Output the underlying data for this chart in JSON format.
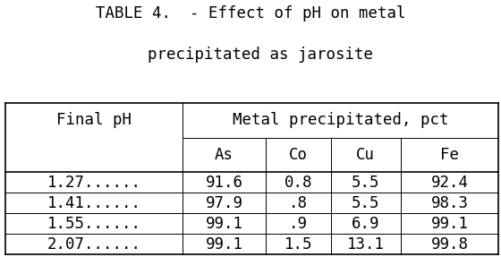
{
  "title_line1": "TABLE 4.  - Effect of pH on metal",
  "title_line2": "  precipitated as jarosite",
  "col_header1": "Final pH",
  "col_header2": "Metal precipitated, pct",
  "subheaders": [
    "As",
    "Co",
    "Cu",
    "Fe"
  ],
  "rows": [
    {
      "ph": "1.27......",
      "As": "91.6",
      "Co": "0.8",
      "Cu": "5.5",
      "Fe": "92.4"
    },
    {
      "ph": "1.41......",
      "As": "97.9",
      "Co": ".8",
      "Cu": "5.5",
      "Fe": "98.3"
    },
    {
      "ph": "1.55......",
      "As": "99.1",
      "Co": ".9",
      "Cu": "6.9",
      "Fe": "99.1"
    },
    {
      "ph": "2.07......",
      "As": "99.1",
      "Co": "1.5",
      "Cu": "13.1",
      "Fe": "99.8"
    }
  ],
  "bg_color": "#ffffff",
  "text_color": "#000000",
  "title_fontsize": 12.5,
  "table_fontsize": 12.5,
  "lw_thick": 1.2,
  "lw_thin": 0.7
}
